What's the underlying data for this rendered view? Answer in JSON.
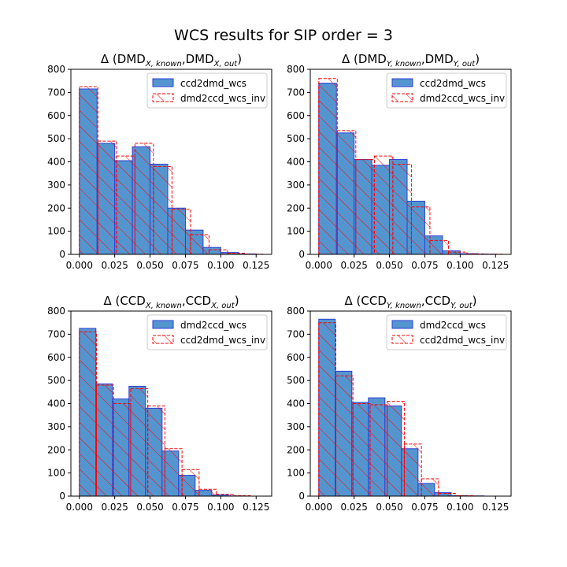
{
  "figure": {
    "title": "WCS results for SIP order = 3"
  },
  "colors": {
    "fill": "#5595cf",
    "edge": "#2b3fd6",
    "dashed": "#ff0000",
    "hatch": "#ff0000",
    "axis": "#000000"
  },
  "chart_data": [
    {
      "type": "bar",
      "title": "Δ (DMD_{X,known},DMD_{X,out})",
      "title_parts": {
        "prefix": "Δ (DMD",
        "sub1": "X, known",
        "mid": ",DMD",
        "sub2": "X, out",
        "suffix": ")"
      },
      "xlim": [
        -0.006,
        0.136
      ],
      "ylim": [
        0,
        800
      ],
      "xticks": [
        "0.000",
        "0.025",
        "0.050",
        "0.075",
        "0.100",
        "0.125"
      ],
      "yticks": [
        "0",
        "100",
        "200",
        "300",
        "400",
        "500",
        "600",
        "700",
        "800"
      ],
      "legend": "upper right",
      "series": [
        {
          "name": "ccd2dmd_wcs",
          "style": "filled",
          "bin_edges": [
            0.0,
            0.0125,
            0.025,
            0.0375,
            0.05,
            0.0625,
            0.075,
            0.0875,
            0.1,
            0.1125,
            0.125
          ],
          "values": [
            715,
            480,
            405,
            465,
            390,
            200,
            105,
            30,
            8,
            2
          ]
        },
        {
          "name": "dmd2ccd_wcs_inv",
          "style": "dashed-hatched",
          "bin_edges": [
            0.0,
            0.0131,
            0.0262,
            0.0393,
            0.0524,
            0.0655,
            0.0786,
            0.0917,
            0.1048,
            0.1179,
            0.131
          ],
          "values": [
            725,
            490,
            425,
            480,
            380,
            195,
            85,
            20,
            5,
            1
          ]
        }
      ]
    },
    {
      "type": "bar",
      "title": "Δ (DMD_{Y,known},DMD_{Y,out})",
      "title_parts": {
        "prefix": "Δ (DMD",
        "sub1": "Y, known",
        "mid": ",DMD",
        "sub2": "Y, out",
        "suffix": ")"
      },
      "xlim": [
        -0.006,
        0.136
      ],
      "ylim": [
        0,
        800
      ],
      "xticks": [
        "0.000",
        "0.025",
        "0.050",
        "0.075",
        "0.100",
        "0.125"
      ],
      "yticks": [
        "0",
        "100",
        "200",
        "300",
        "400",
        "500",
        "600",
        "700",
        "800"
      ],
      "legend": "upper right",
      "series": [
        {
          "name": "ccd2dmd_wcs",
          "style": "filled",
          "bin_edges": [
            0.0,
            0.0125,
            0.025,
            0.0375,
            0.05,
            0.0625,
            0.075,
            0.0875,
            0.1,
            0.1125,
            0.125
          ],
          "values": [
            740,
            525,
            410,
            385,
            410,
            230,
            80,
            15,
            3,
            1
          ]
        },
        {
          "name": "dmd2ccd_wcs_inv",
          "style": "dashed-hatched",
          "bin_edges": [
            0.0,
            0.0131,
            0.0262,
            0.0393,
            0.0524,
            0.0655,
            0.0786,
            0.0917,
            0.1048,
            0.1179,
            0.131
          ],
          "values": [
            760,
            535,
            410,
            425,
            390,
            205,
            60,
            10,
            2,
            1
          ]
        }
      ]
    },
    {
      "type": "bar",
      "title": "Δ (CCD_{X,known},CCD_{X,out})",
      "title_parts": {
        "prefix": "Δ (CCD",
        "sub1": "X, known",
        "mid": ",CCD",
        "sub2": "X, out",
        "suffix": ")"
      },
      "xlim": [
        -0.006,
        0.136
      ],
      "ylim": [
        0,
        800
      ],
      "xticks": [
        "0.000",
        "0.025",
        "0.050",
        "0.075",
        "0.100",
        "0.125"
      ],
      "yticks": [
        "0",
        "100",
        "200",
        "300",
        "400",
        "500",
        "600",
        "700",
        "800"
      ],
      "legend": "upper right",
      "series": [
        {
          "name": "dmd2ccd_wcs",
          "style": "filled",
          "bin_edges": [
            0.0,
            0.0117,
            0.0234,
            0.0351,
            0.0468,
            0.0585,
            0.0702,
            0.0819,
            0.0936,
            0.1053,
            0.117
          ],
          "values": [
            725,
            485,
            420,
            475,
            380,
            195,
            90,
            25,
            5,
            1
          ]
        },
        {
          "name": "ccd2dmd_wcs_inv",
          "style": "dashed-hatched",
          "bin_edges": [
            0.0,
            0.0121,
            0.0242,
            0.0363,
            0.0484,
            0.0605,
            0.0726,
            0.0847,
            0.0968,
            0.1089,
            0.121
          ],
          "values": [
            710,
            480,
            400,
            465,
            390,
            205,
            115,
            30,
            8,
            2
          ]
        }
      ]
    },
    {
      "type": "bar",
      "title": "Δ (CCD_{Y,known},CCD_{Y,out})",
      "title_parts": {
        "prefix": "Δ (CCD",
        "sub1": "Y, known",
        "mid": ",CCD",
        "sub2": "Y, out",
        "suffix": ")"
      },
      "xlim": [
        -0.006,
        0.136
      ],
      "ylim": [
        0,
        800
      ],
      "xticks": [
        "0.000",
        "0.025",
        "0.050",
        "0.075",
        "0.100",
        "0.125"
      ],
      "yticks": [
        "0",
        "100",
        "200",
        "300",
        "400",
        "500",
        "600",
        "700",
        "800"
      ],
      "legend": "upper right",
      "series": [
        {
          "name": "dmd2ccd_wcs",
          "style": "filled",
          "bin_edges": [
            0.0,
            0.0117,
            0.0234,
            0.0351,
            0.0468,
            0.0585,
            0.0702,
            0.0819,
            0.0936,
            0.1053,
            0.117
          ],
          "values": [
            765,
            540,
            405,
            425,
            390,
            205,
            55,
            15,
            2,
            1
          ]
        },
        {
          "name": "ccd2dmd_wcs_inv",
          "style": "dashed-hatched",
          "bin_edges": [
            0.0,
            0.0121,
            0.0242,
            0.0363,
            0.0484,
            0.0605,
            0.0726,
            0.0847,
            0.0968,
            0.1089,
            0.121
          ],
          "values": [
            750,
            520,
            400,
            395,
            410,
            225,
            75,
            12,
            2,
            0
          ]
        }
      ]
    }
  ]
}
